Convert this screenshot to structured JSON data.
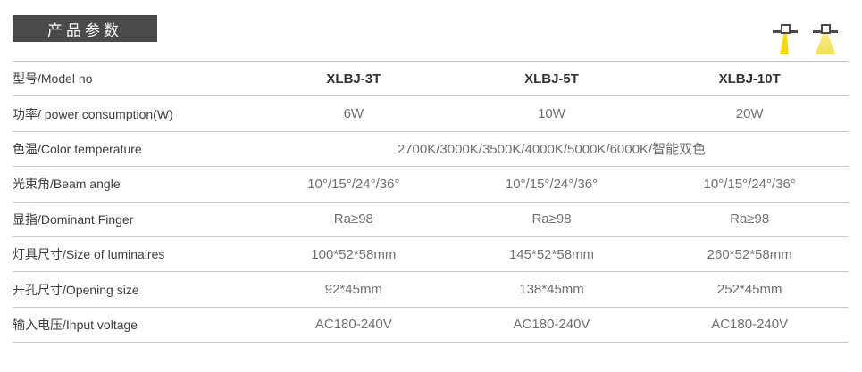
{
  "header": {
    "badge_label": "产品参数"
  },
  "icons": {
    "narrow_beam": "narrow-beam-downlight-icon",
    "wide_beam": "wide-beam-downlight-icon"
  },
  "colors": {
    "badge_bg": "#4a4a4a",
    "badge_text": "#ffffff",
    "beam_yellow": "#f2d600",
    "beam_light_yellow": "#f2e155",
    "divider_line": "#c9c9c9",
    "label_text": "#3d3d3d",
    "value_text": "#6f6f6f"
  },
  "table": {
    "rows": [
      {
        "label": "型号/Model no",
        "values": [
          "XLBJ-3T",
          "XLBJ-5T",
          "XLBJ-10T"
        ]
      },
      {
        "label": "功率/ power consumption(W)",
        "values": [
          "6W",
          "10W",
          "20W"
        ]
      },
      {
        "label": "色温/Color temperature",
        "span_value": "2700K/3000K/3500K/4000K/5000K/6000K/智能双色"
      },
      {
        "label": "光束角/Beam angle",
        "values": [
          "10°/15°/24°/36°",
          "10°/15°/24°/36°",
          "10°/15°/24°/36°"
        ]
      },
      {
        "label": "显指/Dominant Finger",
        "values": [
          "Ra≥98",
          "Ra≥98",
          "Ra≥98"
        ]
      },
      {
        "label": "灯具尺寸/Size of luminaires",
        "values": [
          "100*52*58mm",
          "145*52*58mm",
          "260*52*58mm"
        ]
      },
      {
        "label": "开孔尺寸/Opening size",
        "values": [
          "92*45mm",
          "138*45mm",
          "252*45mm"
        ]
      },
      {
        "label": "输入电压/Input voltage",
        "values": [
          "AC180-240V",
          "AC180-240V",
          "AC180-240V"
        ]
      }
    ]
  }
}
